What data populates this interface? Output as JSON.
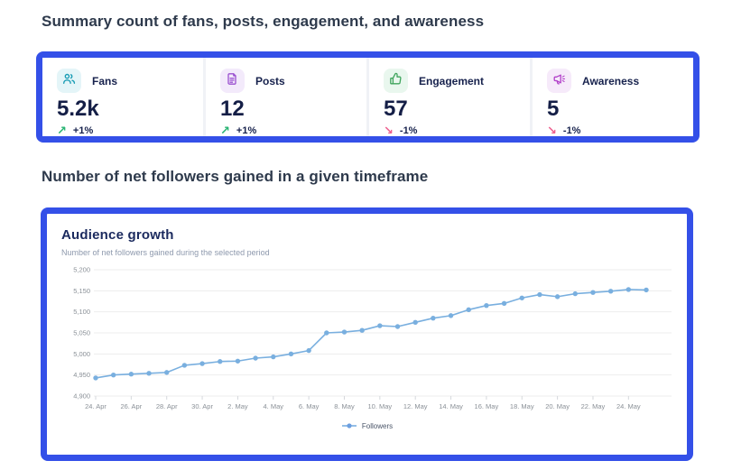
{
  "header": {
    "summary_title": "Summary count of fans, posts, engagement, and awareness",
    "growth_title": "Number of net followers gained in a given timeframe"
  },
  "colors": {
    "highlight_border": "#3450e8",
    "trend_up": "#29b473",
    "trend_down": "#ee5f8e",
    "line": "#79afdf",
    "grid": "#ededed",
    "tick_text": "#8a9097"
  },
  "stats": [
    {
      "label": "Fans",
      "value": "5.2k",
      "trend": "+1%",
      "arrow": "↗",
      "direction": "up",
      "icon": "users-icon",
      "icon_color": "#1b9db5",
      "icon_bg": "#e4f5f8"
    },
    {
      "label": "Posts",
      "value": "12",
      "trend": "+1%",
      "arrow": "↗",
      "direction": "up",
      "icon": "document-icon",
      "icon_color": "#9b51d0",
      "icon_bg": "#f3eafb"
    },
    {
      "label": "Engagement",
      "value": "57",
      "trend": "-1%",
      "arrow": "↘",
      "direction": "down",
      "icon": "thumbs-up-icon",
      "icon_color": "#3fa45c",
      "icon_bg": "#e9f7ee"
    },
    {
      "label": "Awareness",
      "value": "5",
      "trend": "-1%",
      "arrow": "↘",
      "direction": "down",
      "icon": "megaphone-icon",
      "icon_color": "#b13fc9",
      "icon_bg": "#f6eafa"
    }
  ],
  "chart": {
    "title": "Audience growth",
    "subtitle": "Number of net followers gained during the selected period",
    "legend_label": "Followers"
  },
  "chart_data": {
    "type": "line",
    "title": "Audience growth",
    "series": [
      {
        "name": "Followers",
        "values": [
          4943,
          4950,
          4952,
          4954,
          4956,
          4973,
          4977,
          4982,
          4983,
          4990,
          4993,
          5000,
          5008,
          5050,
          5052,
          5056,
          5067,
          5065,
          5075,
          5085,
          5091,
          5105,
          5115,
          5120,
          5133,
          5141,
          5136,
          5143,
          5146,
          5149,
          5153,
          5152
        ]
      }
    ],
    "x": [
      "24. Apr",
      "25. Apr",
      "26. Apr",
      "27. Apr",
      "28. Apr",
      "29. Apr",
      "30. Apr",
      "1. May",
      "2. May",
      "3. May",
      "4. May",
      "5. May",
      "6. May",
      "7. May",
      "8. May",
      "9. May",
      "10. May",
      "11. May",
      "12. May",
      "13. May",
      "14. May",
      "15. May",
      "16. May",
      "17. May",
      "18. May",
      "19. May",
      "20. May",
      "21. May",
      "22. May",
      "23. May",
      "24. May",
      "25. May"
    ],
    "xtick_every": 2,
    "ylim": [
      4900,
      5200
    ],
    "yticks": [
      4900,
      4950,
      5000,
      5050,
      5100,
      5150,
      5200
    ],
    "ytick_labels": [
      "4,900",
      "4,950",
      "5,000",
      "5,050",
      "5,100",
      "5,150",
      "5,200"
    ],
    "grid": true,
    "legend_position": "bottom-center"
  }
}
